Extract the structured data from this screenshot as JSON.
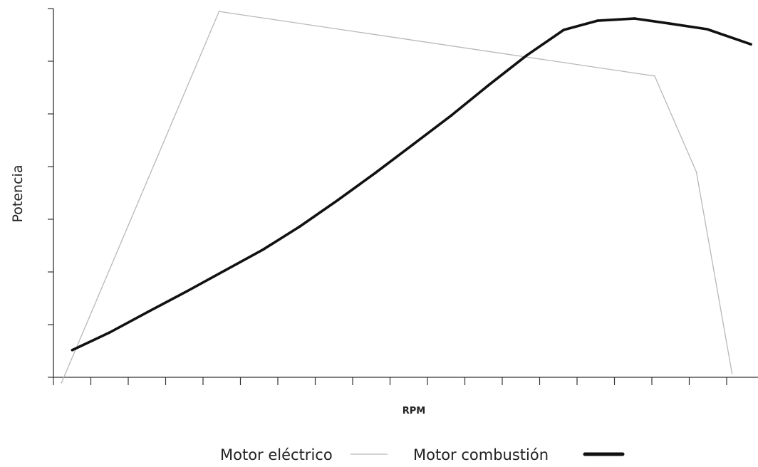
{
  "chart_data": {
    "type": "line",
    "xlabel": "RPM",
    "ylabel": "Potencia",
    "xlim": [
      0,
      100
    ],
    "ylim": [
      0,
      100
    ],
    "x_tick_count": 19,
    "y_tick_count": 7,
    "grid": false,
    "legend_position": "bottom",
    "series": [
      {
        "name": "Motor eléctrico",
        "color": "#b8b8b8",
        "style": "thin",
        "x": [
          1.2,
          24.6,
          89.3,
          95.5,
          100.8
        ],
        "y": [
          -1.5,
          99.2,
          81.7,
          55.7,
          1.0
        ]
      },
      {
        "name": "Motor combustión",
        "color": "#111111",
        "style": "thick",
        "x": [
          2.8,
          8.3,
          14.1,
          19.8,
          25.4,
          31.1,
          36.6,
          42.2,
          47.8,
          53.4,
          59.1,
          64.7,
          70.3,
          75.8,
          80.8,
          86.3,
          91.6,
          97.1,
          103.6
        ],
        "y": [
          7.4,
          12.1,
          17.8,
          23.3,
          28.9,
          34.6,
          40.9,
          48.0,
          55.4,
          63.1,
          71.0,
          79.3,
          87.3,
          94.2,
          96.7,
          97.3,
          95.9,
          94.4,
          90.3
        ]
      }
    ]
  }
}
